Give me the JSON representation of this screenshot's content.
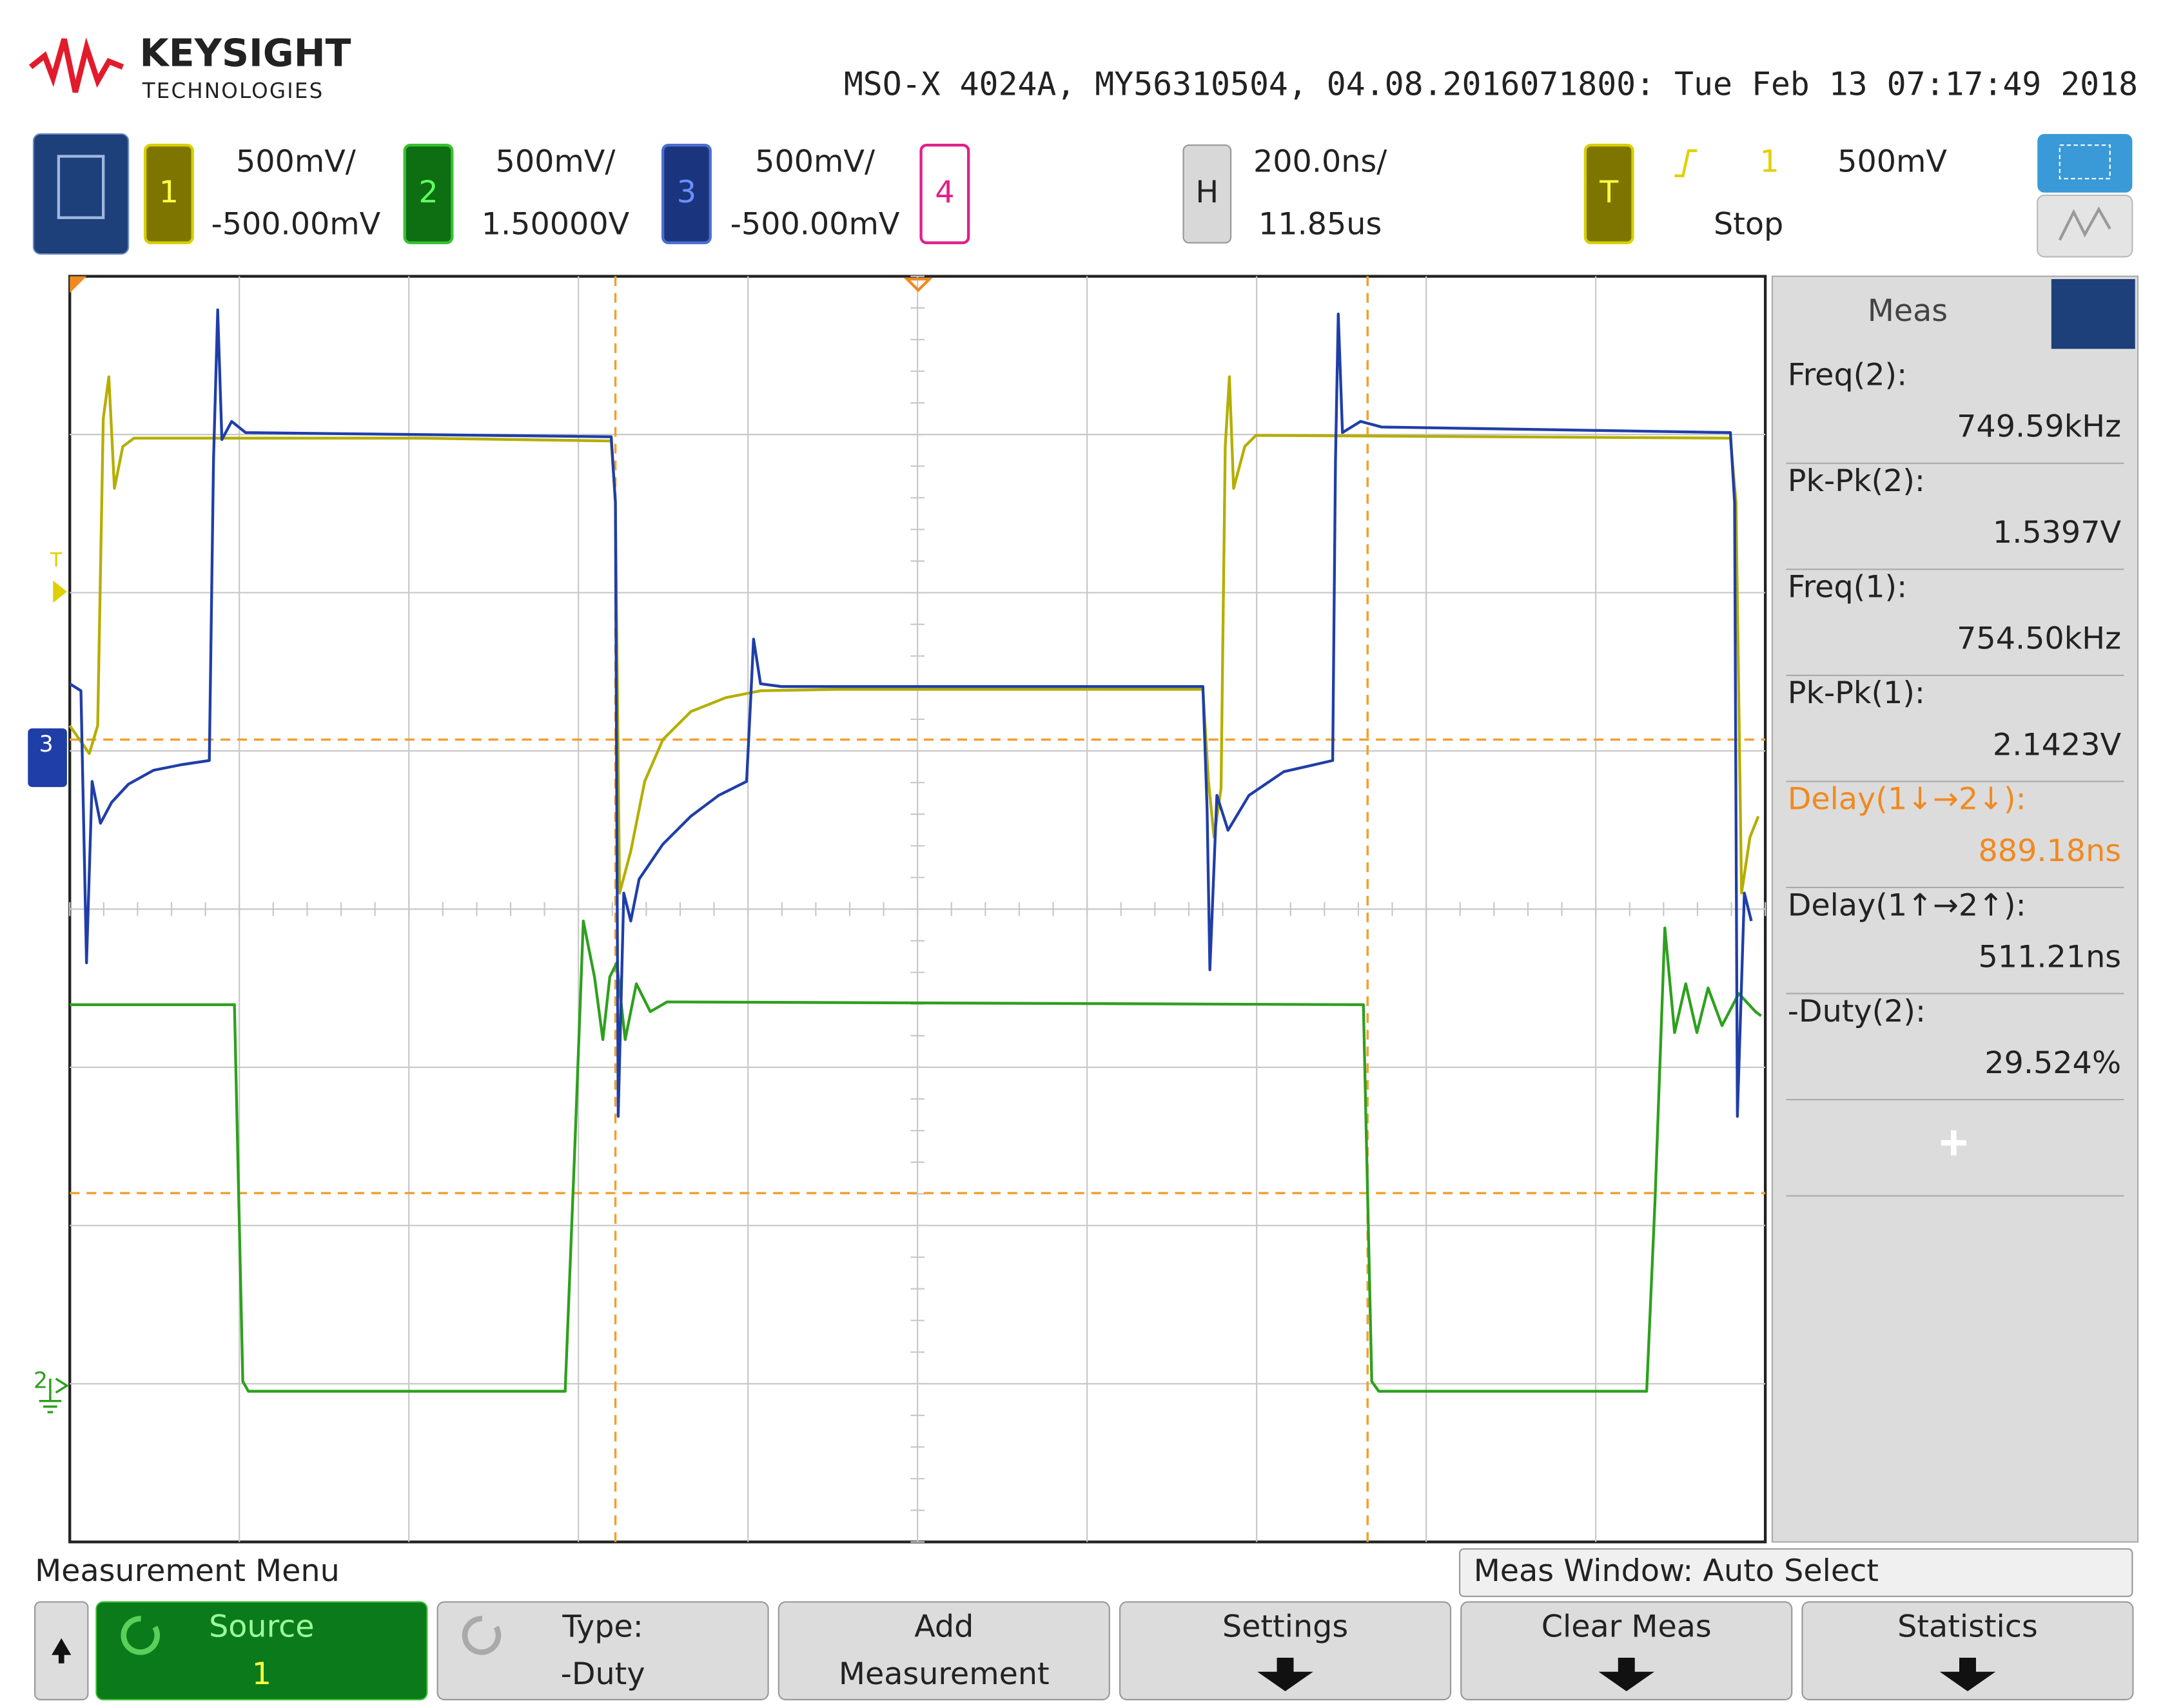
{
  "header": {
    "brand": "KEYSIGHT",
    "brand_sub": "TECHNOLOGIES",
    "instrument": "MSO-X 4024A, MY56310504, 04.08.2016071800: Tue Feb 13 07:17:49 2018"
  },
  "channels": [
    {
      "number": "1",
      "scale": "500mV/",
      "offset": "-500.00mV"
    },
    {
      "number": "2",
      "scale": "500mV/",
      "offset": "1.50000V"
    },
    {
      "number": "3",
      "scale": "500mV/",
      "offset": "-500.00mV"
    },
    {
      "number": "4"
    }
  ],
  "horizontal": {
    "label": "H",
    "scale": "200.0ns/",
    "position": "11.85us"
  },
  "trigger": {
    "label": "T",
    "source": "1",
    "level": "500mV",
    "status": "Stop"
  },
  "meas_panel": {
    "title": "Meas",
    "items": [
      {
        "label": "Freq(2):",
        "value": "749.59kHz"
      },
      {
        "label": "Pk-Pk(2):",
        "value": "1.5397V"
      },
      {
        "label": "Freq(1):",
        "value": "754.50kHz"
      },
      {
        "label": "Pk-Pk(1):",
        "value": "2.1423V"
      },
      {
        "label": "Delay(1↓→2↓):",
        "value": "889.18ns"
      },
      {
        "label": "Delay(1↑→2↑):",
        "value": "511.21ns"
      },
      {
        "label": "-Duty(2):",
        "value": "29.524%"
      }
    ]
  },
  "softkeys": {
    "menu_title": "Measurement Menu",
    "meas_window": "Meas Window: Auto Select",
    "buttons": [
      {
        "line1": "Source",
        "line2": "1"
      },
      {
        "line1": "Type:",
        "line2": "-Duty"
      },
      {
        "line1": "Add",
        "line2": "Measurement"
      },
      {
        "line1": "Settings"
      },
      {
        "line1": "Clear Meas"
      },
      {
        "line1": "Statistics"
      }
    ]
  }
}
